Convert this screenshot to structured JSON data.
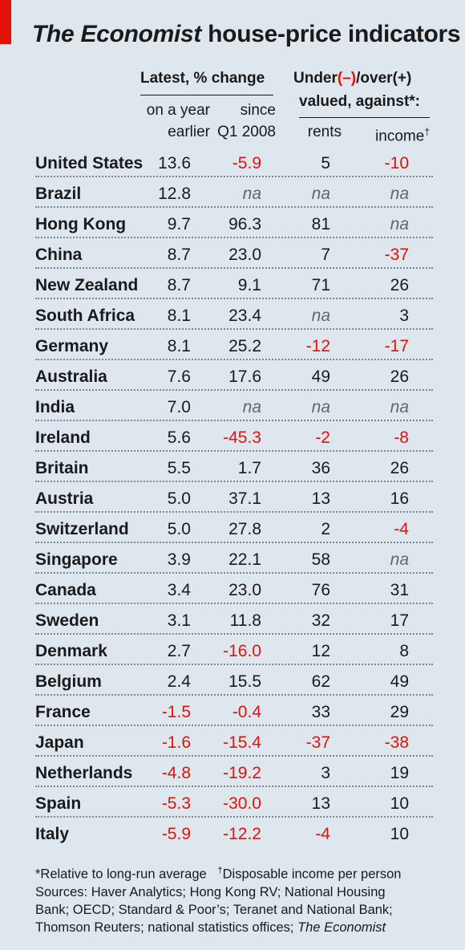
{
  "title": {
    "italic": "The Economist",
    "rest": " house-price indicators"
  },
  "headers": {
    "group1": "Latest, % change",
    "group2_line1_a": "Under",
    "group2_line1_b": "(–)",
    "group2_line1_c": "/over",
    "group2_line1_d": "(+)",
    "group2_line2": "valued, against*:",
    "col1_l1": "on a year",
    "col1_l2": "earlier",
    "col2_l1": "since",
    "col2_l2": "Q1 2008",
    "col3": "rents",
    "col4": "income",
    "col4_mark": "†"
  },
  "chart_data": {
    "type": "table",
    "columns": [
      "on a year earlier",
      "since Q1 2008",
      "rents",
      "income"
    ],
    "rows": [
      {
        "name": "United States",
        "values": [
          "13.6",
          "-5.9",
          "5",
          "-10"
        ]
      },
      {
        "name": "Brazil",
        "values": [
          "12.8",
          "na",
          "na",
          "na"
        ]
      },
      {
        "name": "Hong Kong",
        "values": [
          "9.7",
          "96.3",
          "81",
          "na"
        ]
      },
      {
        "name": "China",
        "values": [
          "8.7",
          "23.0",
          "7",
          "-37"
        ]
      },
      {
        "name": "New Zealand",
        "values": [
          "8.7",
          "9.1",
          "71",
          "26"
        ]
      },
      {
        "name": "South Africa",
        "values": [
          "8.1",
          "23.4",
          "na",
          "3"
        ]
      },
      {
        "name": "Germany",
        "values": [
          "8.1",
          "25.2",
          "-12",
          "-17"
        ]
      },
      {
        "name": "Australia",
        "values": [
          "7.6",
          "17.6",
          "49",
          "26"
        ]
      },
      {
        "name": "India",
        "values": [
          "7.0",
          "na",
          "na",
          "na"
        ]
      },
      {
        "name": "Ireland",
        "values": [
          "5.6",
          "-45.3",
          "-2",
          "-8"
        ]
      },
      {
        "name": "Britain",
        "values": [
          "5.5",
          "1.7",
          "36",
          "26"
        ]
      },
      {
        "name": "Austria",
        "values": [
          "5.0",
          "37.1",
          "13",
          "16"
        ]
      },
      {
        "name": "Switzerland",
        "values": [
          "5.0",
          "27.8",
          "2",
          "-4"
        ]
      },
      {
        "name": "Singapore",
        "values": [
          "3.9",
          "22.1",
          "58",
          "na"
        ]
      },
      {
        "name": "Canada",
        "values": [
          "3.4",
          "23.0",
          "76",
          "31"
        ]
      },
      {
        "name": "Sweden",
        "values": [
          "3.1",
          "11.8",
          "32",
          "17"
        ]
      },
      {
        "name": "Denmark",
        "values": [
          "2.7",
          "-16.0",
          "12",
          "8"
        ]
      },
      {
        "name": "Belgium",
        "values": [
          "2.4",
          "15.5",
          "62",
          "49"
        ]
      },
      {
        "name": "France",
        "values": [
          "-1.5",
          "-0.4",
          "33",
          "29"
        ]
      },
      {
        "name": "Japan",
        "values": [
          "-1.6",
          "-15.4",
          "-37",
          "-38"
        ]
      },
      {
        "name": "Netherlands",
        "values": [
          "-4.8",
          "-19.2",
          "3",
          "19"
        ]
      },
      {
        "name": "Spain",
        "values": [
          "-5.3",
          "-30.0",
          "13",
          "10"
        ]
      },
      {
        "name": "Italy",
        "values": [
          "-5.9",
          "-12.2",
          "-4",
          "10"
        ]
      }
    ]
  },
  "footer": {
    "note1": "*Relative to long-run average",
    "note2_mark": "†",
    "note2": "Disposable income per person",
    "sources_l1": "Sources: Haver Analytics; Hong Kong RV; National Housing",
    "sources_l2": "Bank; OECD; Standard & Poor’s; Teranet and National Bank;",
    "sources_l3": "Thomson Reuters; national statistics offices; ",
    "sources_l3_italic": "The Economist"
  },
  "colors": {
    "negative": "#e3120b",
    "background": "#dee6ee",
    "accent": "#e3120b"
  }
}
